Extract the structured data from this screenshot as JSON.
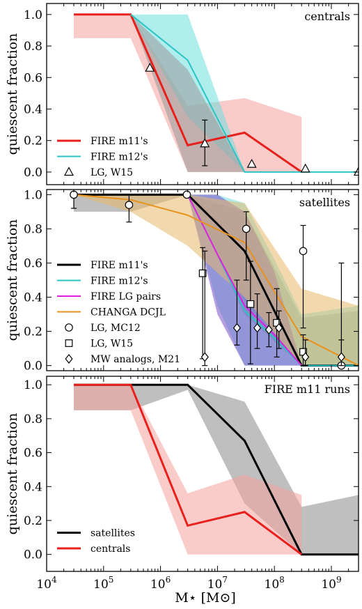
{
  "figure": {
    "xlabel": "M⋆ [M⊙]",
    "ylabel": "quiescent fraction",
    "x_ticks": [
      "10^4",
      "10^5",
      "10^6",
      "10^7",
      "10^8",
      "10^9"
    ],
    "y_ticks": [
      "0.0",
      "0.2",
      "0.4",
      "0.6",
      "0.8",
      "1.0"
    ]
  },
  "chart_data": [
    {
      "type": "line",
      "title": "centrals",
      "xlabel": "",
      "ylabel": "quiescent fraction",
      "xscale": "log",
      "xlim": [
        10000,
        3000000000
      ],
      "ylim": [
        -0.08,
        1.07
      ],
      "legend_position": "bottom-left",
      "series": [
        {
          "name": "FIRE m11's",
          "color": "#e8201c",
          "band_color": "#f4a09c",
          "x": [
            30000,
            300000,
            3000000,
            30000000,
            300000000
          ],
          "y": [
            1.0,
            1.0,
            0.17,
            0.25,
            0.0
          ],
          "lo": [
            0.85,
            0.85,
            0.0,
            0.0,
            0.0
          ],
          "hi": [
            1.0,
            1.0,
            0.42,
            0.47,
            0.35
          ]
        },
        {
          "name": "FIRE m12's",
          "color": "#2bc4c4",
          "band_color": "#6fdede",
          "x": [
            300000,
            3000000,
            30000000,
            300000000,
            3000000000
          ],
          "y": [
            1.0,
            0.71,
            0.0,
            0.0,
            0.0
          ],
          "lo": [
            1.0,
            0.35,
            0.0,
            0.0,
            0.0
          ],
          "hi": [
            1.0,
            1.0,
            0.0,
            0.0,
            0.0
          ]
        },
        {
          "name": "",
          "color": "#000000",
          "band_color": "#999999",
          "band_only": true,
          "x": [
            300000,
            3000000,
            30000000
          ],
          "y": [
            1.0,
            0.5,
            0.0
          ],
          "lo": [
            1.0,
            0.0,
            0.0
          ],
          "hi": [
            1.0,
            0.65,
            0.0
          ]
        }
      ],
      "markers": [
        {
          "name": "LG, W15",
          "symbol": "triangle",
          "x": [
            650000,
            6000000,
            40000000,
            350000000,
            3000000000
          ],
          "y": [
            0.66,
            0.18,
            0.05,
            0.02,
            0.0
          ],
          "err_lo": [
            0.0,
            0.14,
            0.0,
            0.0,
            0.0
          ],
          "err_hi": [
            0.0,
            0.15,
            0.0,
            0.0,
            0.0
          ]
        }
      ]
    },
    {
      "type": "line",
      "title": "satellites",
      "xlabel": "",
      "ylabel": "quiescent fraction",
      "xscale": "log",
      "xlim": [
        10000,
        3000000000
      ],
      "ylim": [
        -0.03,
        1.03
      ],
      "legend_position": "bottom-left",
      "series": [
        {
          "name": "FIRE m11's",
          "color": "#000000",
          "band_color": "#8a8a8a",
          "x": [
            30000,
            300000,
            3000000,
            30000000,
            300000000,
            3000000000
          ],
          "y": [
            1.0,
            1.0,
            1.0,
            0.67,
            0.0,
            0.0
          ],
          "lo": [
            0.9,
            0.9,
            1.0,
            0.3,
            0.0,
            0.0
          ],
          "hi": [
            1.0,
            1.0,
            1.0,
            0.9,
            0.28,
            0.32
          ]
        },
        {
          "name": "FIRE m12's",
          "color": "#2bc4c4",
          "band_color": "#6fdede",
          "x": [
            3000000,
            10000000,
            30000000,
            100000000,
            300000000,
            3000000000
          ],
          "y": [
            1.0,
            0.65,
            0.32,
            0.16,
            0.0,
            0.0
          ],
          "lo": [
            1.0,
            0.35,
            0.0,
            0.0,
            0.0,
            0.0
          ],
          "hi": [
            1.0,
            1.0,
            0.95,
            0.62,
            0.3,
            0.35
          ]
        },
        {
          "name": "FIRE LG pairs",
          "color": "#e020e0",
          "band_color": "#7a4fc8",
          "x": [
            3000000,
            10000000,
            30000000,
            100000000,
            300000000
          ],
          "y": [
            1.0,
            0.65,
            0.35,
            0.18,
            0.0
          ],
          "lo": [
            1.0,
            0.3,
            0.0,
            0.0,
            0.0
          ],
          "hi": [
            1.0,
            1.0,
            0.9,
            0.55,
            0.0
          ]
        },
        {
          "name": "CHANGA DCJL",
          "color": "#e8921c",
          "band_color": "#e8b86a",
          "x": [
            30000,
            300000,
            3000000,
            30000000,
            300000000,
            3000000000
          ],
          "y": [
            1.0,
            0.97,
            0.88,
            0.72,
            0.17,
            0.0
          ],
          "lo": [
            1.0,
            0.9,
            0.7,
            0.4,
            0.0,
            0.0
          ],
          "hi": [
            1.0,
            1.0,
            1.0,
            0.95,
            0.45,
            0.35
          ]
        }
      ],
      "markers": [
        {
          "name": "LG, MC12",
          "symbol": "circle",
          "x": [
            30000,
            280000,
            2900000,
            32000000,
            320000000,
            1500000000
          ],
          "y": [
            1.0,
            0.94,
            1.0,
            0.8,
            0.67,
            0.0
          ],
          "err_lo": [
            0.08,
            0.1,
            0.0,
            0.3,
            0.45,
            0.0
          ],
          "err_hi": [
            0.0,
            0.06,
            0.0,
            0.1,
            0.15,
            0.6
          ]
        },
        {
          "name": "LG, W15",
          "symbol": "square",
          "x": [
            5500000,
            38000000,
            110000000,
            320000000
          ],
          "y": [
            0.54,
            0.36,
            0.25,
            0.08
          ],
          "err_lo": [
            0.5,
            0.35,
            0.2,
            0.08
          ],
          "err_hi": [
            0.15,
            0.25,
            0.2,
            0.1
          ]
        },
        {
          "name": "MW analogs, M21",
          "symbol": "diamond",
          "x": [
            6000000,
            22000000,
            50000000,
            80000000,
            120000000,
            350000000,
            1500000000
          ],
          "y": [
            0.05,
            0.22,
            0.22,
            0.21,
            0.22,
            0.05,
            0.05
          ],
          "err_lo": [
            0.05,
            0.1,
            0.12,
            0.1,
            0.12,
            0.05,
            0.05
          ],
          "err_hi": [
            0.62,
            0.28,
            0.2,
            0.1,
            0.1,
            0.1,
            0.1
          ]
        }
      ]
    },
    {
      "type": "line",
      "title": "FIRE m11 runs",
      "xlabel": "M⋆ [M⊙]",
      "ylabel": "quiescent fraction",
      "xscale": "log",
      "xlim": [
        10000,
        3000000000
      ],
      "ylim": [
        -0.1,
        1.05
      ],
      "legend_position": "bottom-left",
      "series": [
        {
          "name": "satellites",
          "color": "#000000",
          "band_color": "#8a8a8a",
          "x": [
            30000,
            300000,
            3000000,
            30000000,
            300000000,
            3000000000
          ],
          "y": [
            1.0,
            1.0,
            1.0,
            0.67,
            0.0,
            0.0
          ],
          "lo": [
            0.85,
            0.85,
            0.97,
            0.3,
            0.0,
            0.0
          ],
          "hi": [
            1.0,
            1.0,
            1.0,
            0.9,
            0.28,
            0.35
          ]
        },
        {
          "name": "centrals",
          "color": "#e8201c",
          "band_color": "#f4a09c",
          "x": [
            30000,
            300000,
            3000000,
            30000000,
            300000000
          ],
          "y": [
            1.0,
            1.0,
            0.17,
            0.25,
            0.0
          ],
          "lo": [
            0.85,
            0.85,
            0.0,
            0.0,
            0.0
          ],
          "hi": [
            1.0,
            1.0,
            0.36,
            0.47,
            0.35
          ]
        }
      ],
      "markers": []
    }
  ]
}
